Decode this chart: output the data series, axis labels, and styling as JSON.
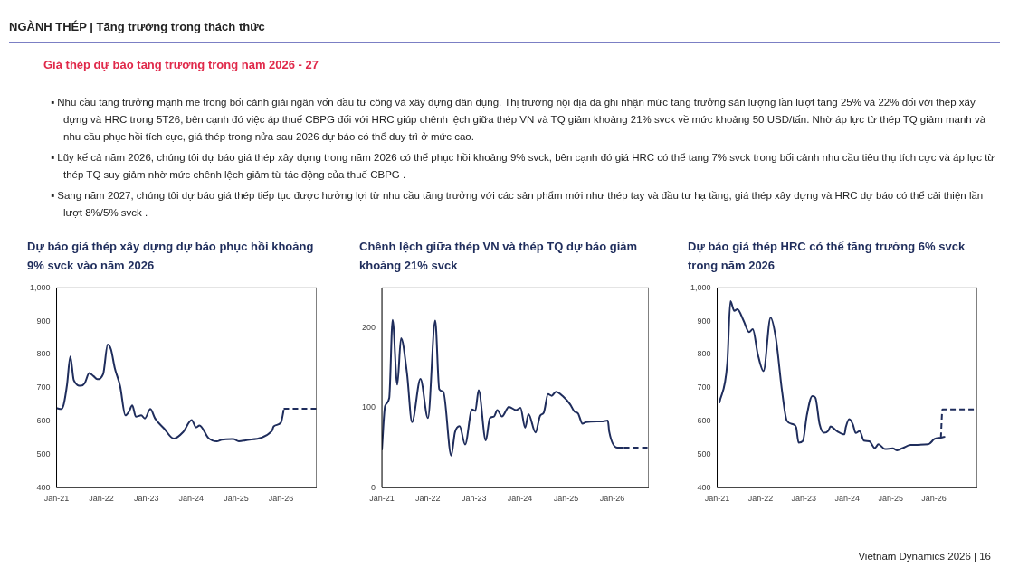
{
  "chart_data": [
    {
      "type": "other",
      "title": "NGÀNH THÉP | Tăng trưởng trong thách thức",
      "subtitle": "Giá thép dự báo tăng trưởng trong năm 2026 - 27",
      "annotations": [
        "▪ Nhu cầu tăng trưởng mạnh mẽ trong bối cảnh giải ngân vốn đầu tư công và xây dựng dân dụng. Thị trường nội địa đã ghi nhận mức tăng trưởng sản lượng lần lượt tang 25% và 22% đối với thép xây dựng và HRC trong 5T26, bên cạnh đó việc áp thuế CBPG đối với HRC giúp chênh lệch giữa thép VN và TQ giảm khoảng 21% svck về mức khoảng 50 USD/tấn. Nhờ áp lực từ thép TQ giảm mạnh và nhu cầu phục hồi tích cực, giá thép trong nửa sau 2026 dự báo có thể duy trì ở mức cao.",
        "▪ Lũy kế cả năm 2026, chúng tôi dự báo giá thép xây dựng trong năm 2026 có thể phục hồi khoảng 9% svck, bên cạnh đó giá HRC có thể tang 7% svck trong bối cảnh nhu cầu tiêu thụ tích cực và áp lực từ thép TQ suy giảm nhờ mức chênh lệch giảm từ tác động của thuế CBPG .",
        "▪ Sang năm 2027, chúng tôi dự báo giá thép tiếp tục được hưởng lợi từ nhu cầu tăng trưởng với các sản phẩm mới như thép tay và đầu tư hạ tầng, giá thép xây dựng và HRC dự báo có thể cải thiện lần lượt 8%/5% svck .",
        "Vietnam Dynamics 2026 | 16"
      ]
    },
    {
      "type": "line",
      "title": "Dự báo giá thép xây dựng dự báo phục hồi khoảng 9% svck vào năm 2026",
      "xlim": [
        "2021-01-01",
        "2026-10-19"
      ],
      "xticks": [
        {
          "value": "2021-01-01",
          "label": "Jan-21"
        },
        {
          "value": "2022-01-01",
          "label": "Jan-22"
        },
        {
          "value": "2023-01-01",
          "label": "Jan-23"
        },
        {
          "value": "2024-01-01",
          "label": "Jan-24"
        },
        {
          "value": "2025-01-01",
          "label": "Jan-25"
        },
        {
          "value": "2026-01-01",
          "label": "Jan-26"
        }
      ],
      "ylim": [
        400,
        1000
      ],
      "yticks": [
        400,
        500,
        600,
        700,
        800,
        900,
        {
          "value": 1000,
          "label": "1,000"
        }
      ],
      "series": [
        {
          "color": "#1f2d5c",
          "line_style": "solid",
          "x": [
            "2021-01-01",
            "2021-02-07",
            "2021-02-28",
            "2021-03-27",
            "2021-04-23",
            "2021-05-21",
            "2021-07-19",
            "2021-08-18",
            "2021-09-24",
            "2021-10-28",
            "2021-11-28",
            "2022-01-15",
            "2022-02-21",
            "2022-03-20",
            "2022-04-19",
            "2022-06-02",
            "2022-07-15",
            "2022-08-11",
            "2022-09-09",
            "2022-10-08",
            "2022-11-21",
            "2022-12-20",
            "2023-02-03",
            "2023-03-13",
            "2023-05-25",
            "2023-08-14",
            "2023-10-28",
            "2024-01-05",
            "2024-02-11",
            "2024-03-09",
            "2024-05-21",
            "2024-07-28",
            "2024-09-06",
            "2024-12-09",
            "2025-01-23",
            "2025-03-17",
            "2025-10-19",
            "2025-11-03",
            "2026-01-01",
            "2026-01-15",
            "2026-01-23"
          ],
          "values": [
            639,
            636,
            650,
            709,
            794,
            723,
            706,
            714,
            744,
            735,
            726,
            741,
            830,
            815,
            760,
            705,
            617,
            627,
            647,
            613,
            617,
            608,
            636,
            608,
            578,
            547,
            567,
            603,
            581,
            587,
            549,
            539,
            544,
            546,
            539,
            542,
            570,
            584,
            596,
            617,
            634
          ]
        },
        {
          "color": "#1f2d5c",
          "line_style": "dashed",
          "x": [
            "2026-01-23",
            "2026-10-19"
          ],
          "values": [
            637,
            637
          ]
        }
      ]
    },
    {
      "type": "line",
      "title": "Chênh lệch giữa thép VN và thép TQ dự báo giảm khoảng 21% svck",
      "xlim": [
        "2021-01-01",
        "2026-10-19"
      ],
      "xticks": [
        {
          "value": "2021-01-01",
          "label": "Jan-21"
        },
        {
          "value": "2022-01-01",
          "label": "Jan-22"
        },
        {
          "value": "2023-01-01",
          "label": "Jan-23"
        },
        {
          "value": "2024-01-01",
          "label": "Jan-24"
        },
        {
          "value": "2025-01-01",
          "label": "Jan-25"
        },
        {
          "value": "2026-01-01",
          "label": "Jan-26"
        }
      ],
      "ylim": [
        0,
        250
      ],
      "yticks": [
        0,
        100,
        200
      ],
      "series": [
        {
          "color": "#1f2d5c",
          "line_style": "solid",
          "x": [
            "2021-01-01",
            "2021-01-26",
            "2021-02-28",
            "2021-03-27",
            "2021-05-03",
            "2021-06-02",
            "2021-07-19",
            "2021-08-28",
            "2021-11-03",
            "2022-01-01",
            "2022-02-28",
            "2022-04-01",
            "2022-05-03",
            "2022-07-05",
            "2022-08-03",
            "2022-09-09",
            "2022-10-23",
            "2022-12-17",
            "2023-01-12",
            "2023-02-07",
            "2023-04-05",
            "2023-05-07",
            "2023-06-09",
            "2023-07-05",
            "2023-08-11",
            "2023-10-05",
            "2023-12-02",
            "2024-01-05",
            "2024-02-11",
            "2024-03-09",
            "2024-05-03",
            "2024-06-09",
            "2024-07-08",
            "2024-08-11",
            "2024-09-09",
            "2024-10-12",
            "2024-12-09",
            "2025-02-03",
            "2025-03-09",
            "2025-04-05",
            "2025-05-11",
            "2025-06-09",
            "2025-10-19",
            "2025-11-28",
            "2025-12-09",
            "2026-02-11",
            "2026-04-05"
          ],
          "values": [
            47,
            102,
            112,
            210,
            129,
            187,
            143,
            82,
            136,
            87,
            209,
            123,
            120,
            40,
            69,
            77,
            54,
            98,
            96,
            122,
            59,
            87,
            89,
            97,
            89,
            101,
            97,
            100,
            75,
            92,
            69,
            90,
            94,
            117,
            115,
            120,
            114,
            104,
            95,
            93,
            80,
            82,
            83,
            84,
            70,
            50,
            50
          ]
        },
        {
          "color": "#1f2d5c",
          "line_style": "dashed",
          "x": [
            "2026-04-05",
            "2026-10-19"
          ],
          "values": [
            50,
            50
          ]
        }
      ]
    },
    {
      "type": "line",
      "title": "Dự báo giá thép HRC có thể tăng trưởng 6% svck trong năm 2026",
      "xlim": [
        "2021-01-01",
        "2027-01-01"
      ],
      "xticks": [
        {
          "value": "2021-01-01",
          "label": "Jan-21"
        },
        {
          "value": "2022-01-01",
          "label": "Jan-22"
        },
        {
          "value": "2023-01-01",
          "label": "Jan-23"
        },
        {
          "value": "2024-01-01",
          "label": "Jan-24"
        },
        {
          "value": "2025-01-01",
          "label": "Jan-25"
        },
        {
          "value": "2026-01-01",
          "label": "Jan-26"
        }
      ],
      "ylim": [
        400,
        1000
      ],
      "yticks": [
        400,
        500,
        600,
        700,
        800,
        900,
        {
          "value": 1000,
          "label": "1,000"
        }
      ],
      "series": [
        {
          "color": "#1f2d5c",
          "line_style": "solid",
          "x": [
            "2021-01-19",
            "2021-03-27",
            "2021-04-23",
            "2021-05-25",
            "2021-06-20",
            "2021-08-11",
            "2021-09-27",
            "2021-10-28",
            "2021-12-09",
            "2022-01-26",
            "2022-03-27",
            "2022-05-11",
            "2022-07-01",
            "2022-08-11",
            "2022-10-05",
            "2022-10-28",
            "2022-11-18",
            "2022-12-24",
            "2023-01-26",
            "2023-03-13",
            "2023-04-08",
            "2023-05-14",
            "2023-06-20",
            "2023-07-26",
            "2023-08-14",
            "2023-10-05",
            "2023-12-09",
            "2023-12-20",
            "2024-01-19",
            "2024-02-18",
            "2024-03-13",
            "2024-04-15",
            "2024-05-21",
            "2024-07-05",
            "2024-08-21",
            "2024-09-20",
            "2024-11-14",
            "2025-01-19",
            "2025-02-25",
            "2025-04-08",
            "2025-06-17",
            "2025-11-14",
            "2026-01-05",
            "2026-02-28",
            "2026-04-05"
          ],
          "values": [
            654,
            773,
            960,
            931,
            936,
            902,
            867,
            876,
            801,
            750,
            911,
            847,
            691,
            601,
            590,
            581,
            535,
            540,
            617,
            675,
            670,
            590,
            565,
            571,
            584,
            570,
            560,
            581,
            606,
            590,
            564,
            570,
            541,
            539,
            519,
            530,
            516,
            518,
            512,
            518,
            528,
            530,
            546,
            550,
            553
          ]
        },
        {
          "color": "#1f2d5c",
          "line_style": "dashed",
          "x": [
            "2026-02-28",
            "2026-03-13",
            "2027-01-01"
          ],
          "values": [
            550,
            635,
            635
          ]
        }
      ]
    }
  ]
}
